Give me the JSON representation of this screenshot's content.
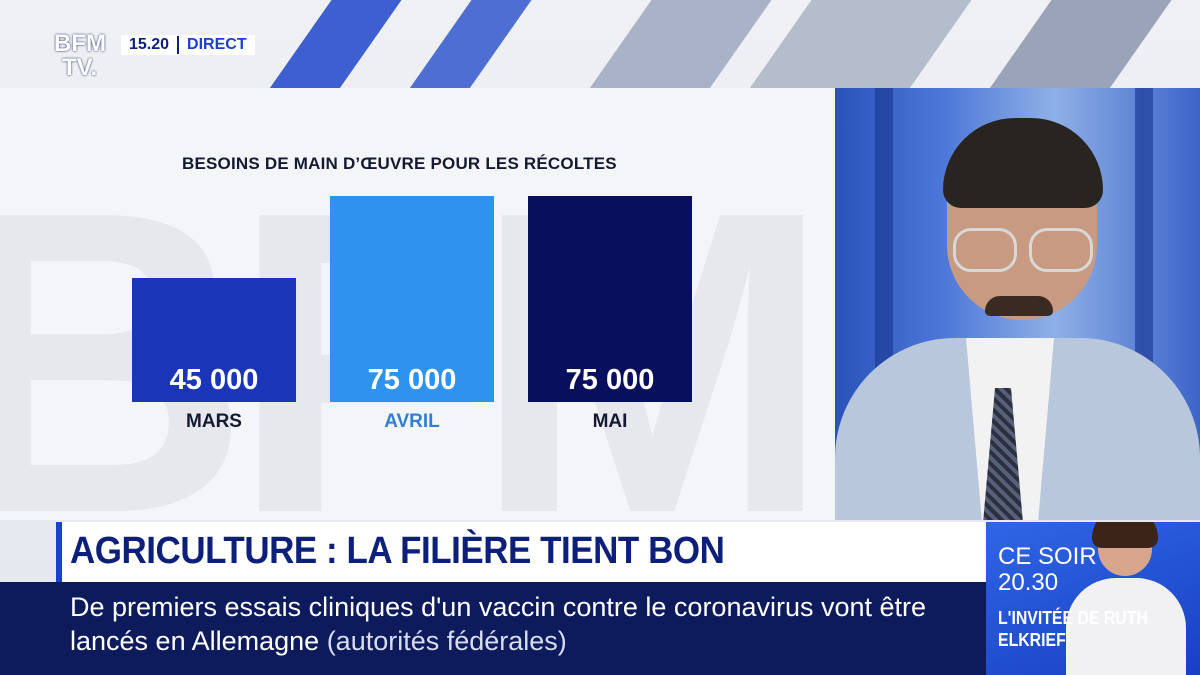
{
  "channel": {
    "logo_line1": "BFM",
    "logo_line2": "TV.",
    "time": "15.20",
    "live_label": "DIRECT"
  },
  "chart_data": {
    "type": "bar",
    "title": "BESOINS DE MAIN D’ŒUVRE POUR LES RÉCOLTES",
    "categories": [
      "MARS",
      "AVRIL",
      "MAI"
    ],
    "values": [
      45000,
      75000,
      75000
    ],
    "value_labels": [
      "45 000",
      "75 000",
      "75 000"
    ],
    "bar_colors": [
      "#1a35b8",
      "#2f93ee",
      "#08105e"
    ],
    "category_colors": [
      "#141a33",
      "#2f7fd8",
      "#141a33"
    ],
    "ylim": [
      0,
      75000
    ],
    "grid": false
  },
  "lower_third": {
    "headline": "AGRICULTURE : LA FILIÈRE TIENT BON",
    "ticker_main": "De premiers essais cliniques d'un vaccin contre le coronavirus vont être lancés en Allemagne",
    "ticker_source": "(autorités fédérales)"
  },
  "promo": {
    "line1": "CE SOIR",
    "line2": "20.30",
    "line3": "L'INVITÉE DE RUTH ELKRIEF"
  }
}
